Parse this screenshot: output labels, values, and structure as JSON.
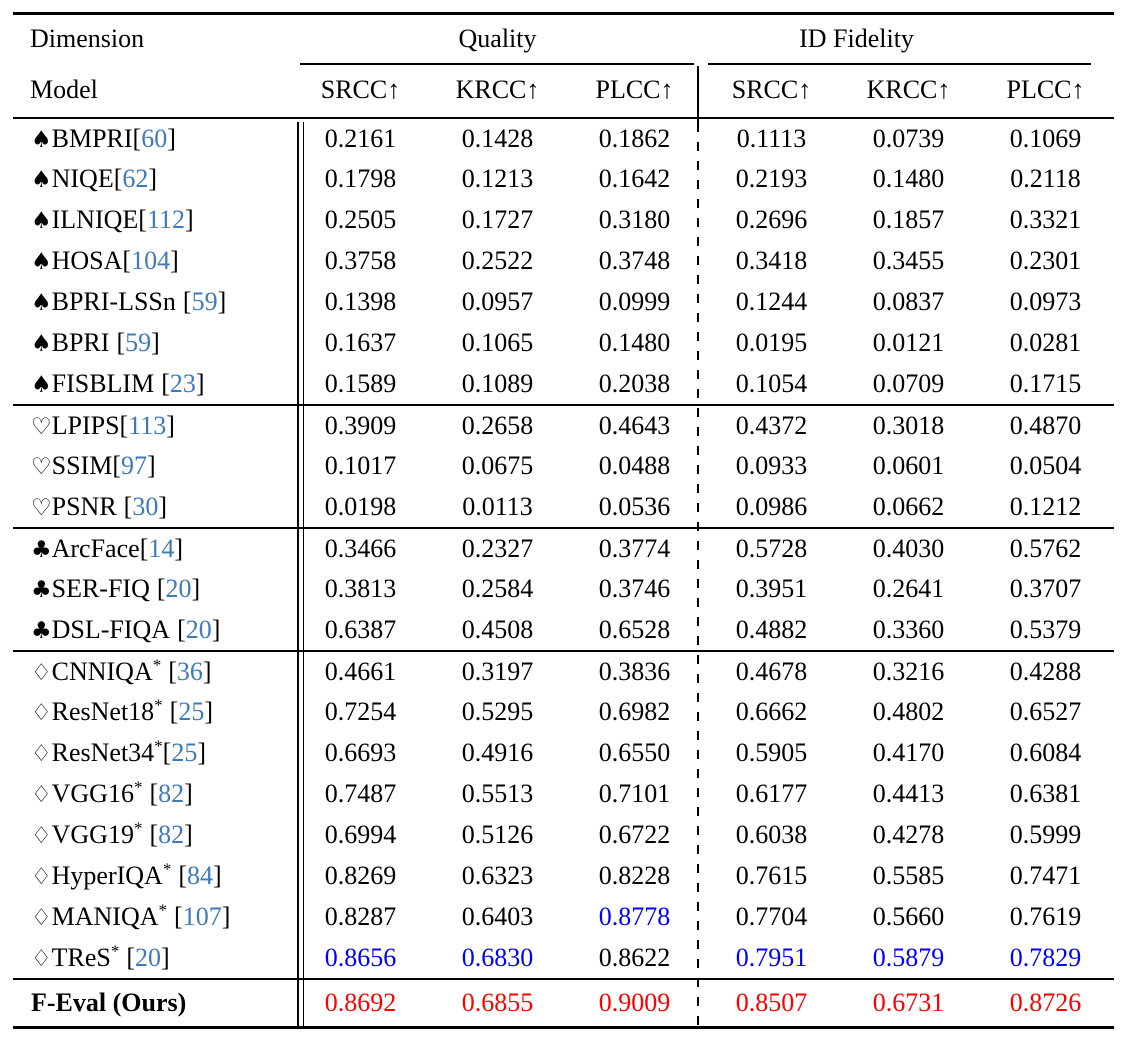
{
  "colors": {
    "citation_blue": "#3e7abc",
    "second_best_blue": "#0000ff",
    "best_red": "#ff0000",
    "rule_black": "#000000",
    "background": "#ffffff"
  },
  "table": {
    "citation_open": "[",
    "citation_close": "]",
    "star_glyph": "*",
    "header": {
      "dimension_label": "Dimension",
      "model_label": "Model",
      "quality_group_label": "Quality",
      "id_fidelity_group_label": "ID Fidelity",
      "metrics": [
        "SRCC↑",
        "KRCC↑",
        "PLCC↑",
        "SRCC↑",
        "KRCC↑",
        "PLCC↑"
      ]
    },
    "sections": [
      {
        "name": "spade-group",
        "suit_name": "spade",
        "suit_glyph": "♠",
        "ours": false,
        "rows": [
          {
            "model": "BMPRI",
            "star": false,
            "space_before_cite": false,
            "cite": "60",
            "values": [
              "0.2161",
              "0.1428",
              "0.1862",
              "0.1113",
              "0.0739",
              "0.1069"
            ],
            "value_colors": [
              "default",
              "default",
              "default",
              "default",
              "default",
              "default"
            ]
          },
          {
            "model": "NIQE",
            "star": false,
            "space_before_cite": false,
            "cite": "62",
            "values": [
              "0.1798",
              "0.1213",
              "0.1642",
              "0.2193",
              "0.1480",
              "0.2118"
            ],
            "value_colors": [
              "default",
              "default",
              "default",
              "default",
              "default",
              "default"
            ]
          },
          {
            "model": "ILNIQE",
            "star": false,
            "space_before_cite": false,
            "cite": "112",
            "values": [
              "0.2505",
              "0.1727",
              "0.3180",
              "0.2696",
              "0.1857",
              "0.3321"
            ],
            "value_colors": [
              "default",
              "default",
              "default",
              "default",
              "default",
              "default"
            ]
          },
          {
            "model": "HOSA",
            "star": false,
            "space_before_cite": false,
            "cite": "104",
            "values": [
              "0.3758",
              "0.2522",
              "0.3748",
              "0.3418",
              "0.3455",
              "0.2301"
            ],
            "value_colors": [
              "default",
              "default",
              "default",
              "default",
              "default",
              "default"
            ]
          },
          {
            "model": "BPRI-LSSn",
            "star": false,
            "space_before_cite": true,
            "cite": "59",
            "values": [
              "0.1398",
              "0.0957",
              "0.0999",
              "0.1244",
              "0.0837",
              "0.0973"
            ],
            "value_colors": [
              "default",
              "default",
              "default",
              "default",
              "default",
              "default"
            ]
          },
          {
            "model": "BPRI",
            "star": false,
            "space_before_cite": true,
            "cite": "59",
            "values": [
              "0.1637",
              "0.1065",
              "0.1480",
              "0.0195",
              "0.0121",
              "0.0281"
            ],
            "value_colors": [
              "default",
              "default",
              "default",
              "default",
              "default",
              "default"
            ]
          },
          {
            "model": "FISBLIM",
            "star": false,
            "space_before_cite": true,
            "cite": "23",
            "values": [
              "0.1589",
              "0.1089",
              "0.2038",
              "0.1054",
              "0.0709",
              "0.1715"
            ],
            "value_colors": [
              "default",
              "default",
              "default",
              "default",
              "default",
              "default"
            ]
          }
        ]
      },
      {
        "name": "heart-group",
        "suit_name": "heart",
        "suit_glyph": "♡",
        "ours": false,
        "rows": [
          {
            "model": "LPIPS",
            "star": false,
            "space_before_cite": false,
            "cite": "113",
            "values": [
              "0.3909",
              "0.2658",
              "0.4643",
              "0.4372",
              "0.3018",
              "0.4870"
            ],
            "value_colors": [
              "default",
              "default",
              "default",
              "default",
              "default",
              "default"
            ]
          },
          {
            "model": "SSIM",
            "star": false,
            "space_before_cite": false,
            "cite": "97",
            "values": [
              "0.1017",
              "0.0675",
              "0.0488",
              "0.0933",
              "0.0601",
              "0.0504"
            ],
            "value_colors": [
              "default",
              "default",
              "default",
              "default",
              "default",
              "default"
            ]
          },
          {
            "model": "PSNR",
            "star": false,
            "space_before_cite": true,
            "cite": "30",
            "values": [
              "0.0198",
              "0.0113",
              "0.0536",
              "0.0986",
              "0.0662",
              "0.1212"
            ],
            "value_colors": [
              "default",
              "default",
              "default",
              "default",
              "default",
              "default"
            ]
          }
        ]
      },
      {
        "name": "club-group",
        "suit_name": "club",
        "suit_glyph": "♣",
        "ours": false,
        "rows": [
          {
            "model": "ArcFace",
            "star": false,
            "space_before_cite": false,
            "cite": "14",
            "values": [
              "0.3466",
              "0.2327",
              "0.3774",
              "0.5728",
              "0.4030",
              "0.5762"
            ],
            "value_colors": [
              "default",
              "default",
              "default",
              "default",
              "default",
              "default"
            ]
          },
          {
            "model": "SER-FIQ",
            "star": false,
            "space_before_cite": true,
            "cite": "20",
            "values": [
              "0.3813",
              "0.2584",
              "0.3746",
              "0.3951",
              "0.2641",
              "0.3707"
            ],
            "value_colors": [
              "default",
              "default",
              "default",
              "default",
              "default",
              "default"
            ]
          },
          {
            "model": "DSL-FIQA",
            "star": false,
            "space_before_cite": true,
            "cite": "20",
            "values": [
              "0.6387",
              "0.4508",
              "0.6528",
              "0.4882",
              "0.3360",
              "0.5379"
            ],
            "value_colors": [
              "default",
              "default",
              "default",
              "default",
              "default",
              "default"
            ]
          }
        ]
      },
      {
        "name": "diamond-group",
        "suit_name": "diamond",
        "suit_glyph": "♢",
        "ours": false,
        "rows": [
          {
            "model": "CNNIQA",
            "star": true,
            "space_before_cite": true,
            "cite": "36",
            "values": [
              "0.4661",
              "0.3197",
              "0.3836",
              "0.4678",
              "0.3216",
              "0.4288"
            ],
            "value_colors": [
              "default",
              "default",
              "default",
              "default",
              "default",
              "default"
            ]
          },
          {
            "model": "ResNet18",
            "star": true,
            "space_before_cite": true,
            "cite": "25",
            "values": [
              "0.7254",
              "0.5295",
              "0.6982",
              "0.6662",
              "0.4802",
              "0.6527"
            ],
            "value_colors": [
              "default",
              "default",
              "default",
              "default",
              "default",
              "default"
            ]
          },
          {
            "model": "ResNet34",
            "star": true,
            "space_before_cite": false,
            "cite": "25",
            "values": [
              "0.6693",
              "0.4916",
              "0.6550",
              "0.5905",
              "0.4170",
              "0.6084"
            ],
            "value_colors": [
              "default",
              "default",
              "default",
              "default",
              "default",
              "default"
            ]
          },
          {
            "model": "VGG16",
            "star": true,
            "space_before_cite": true,
            "cite": "82",
            "values": [
              "0.7487",
              "0.5513",
              "0.7101",
              "0.6177",
              "0.4413",
              "0.6381"
            ],
            "value_colors": [
              "default",
              "default",
              "default",
              "default",
              "default",
              "default"
            ]
          },
          {
            "model": "VGG19",
            "star": true,
            "space_before_cite": true,
            "cite": "82",
            "values": [
              "0.6994",
              "0.5126",
              "0.6722",
              "0.6038",
              "0.4278",
              "0.5999"
            ],
            "value_colors": [
              "default",
              "default",
              "default",
              "default",
              "default",
              "default"
            ]
          },
          {
            "model": "HyperIQA",
            "star": true,
            "space_before_cite": true,
            "cite": "84",
            "values": [
              "0.8269",
              "0.6323",
              "0.8228",
              "0.7615",
              "0.5585",
              "0.7471"
            ],
            "value_colors": [
              "default",
              "default",
              "default",
              "default",
              "default",
              "default"
            ]
          },
          {
            "model": "MANIQA",
            "star": true,
            "space_before_cite": true,
            "cite": "107",
            "values": [
              "0.8287",
              "0.6403",
              "0.8778",
              "0.7704",
              "0.5660",
              "0.7619"
            ],
            "value_colors": [
              "default",
              "default",
              "second",
              "default",
              "default",
              "default"
            ]
          },
          {
            "model": "TReS",
            "star": true,
            "space_before_cite": true,
            "cite": "20",
            "values": [
              "0.8656",
              "0.6830",
              "0.8622",
              "0.7951",
              "0.5879",
              "0.7829"
            ],
            "value_colors": [
              "second",
              "second",
              "default",
              "second",
              "second",
              "second"
            ]
          }
        ]
      },
      {
        "name": "ours",
        "suit_name": null,
        "suit_glyph": null,
        "ours": true,
        "rows": [
          {
            "model": "F-Eval (Ours)",
            "star": false,
            "space_before_cite": false,
            "cite": null,
            "values": [
              "0.8692",
              "0.6855",
              "0.9009",
              "0.8507",
              "0.6731",
              "0.8726"
            ],
            "value_colors": [
              "best",
              "best",
              "best",
              "best",
              "best",
              "best"
            ]
          }
        ]
      }
    ]
  }
}
